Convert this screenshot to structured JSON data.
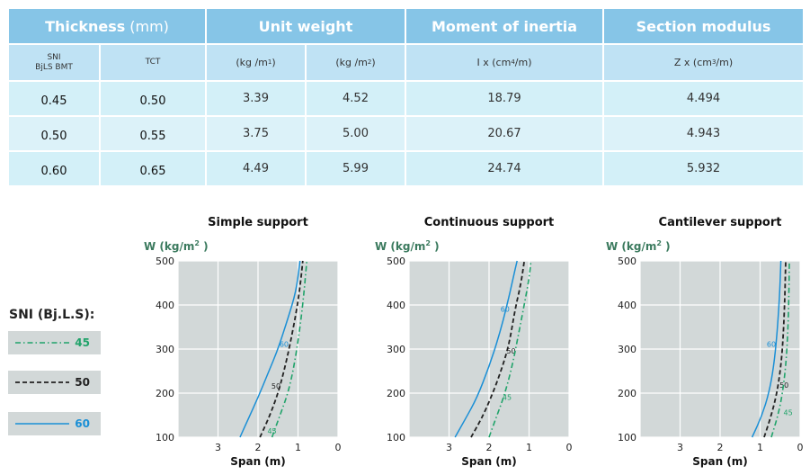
{
  "table": {
    "headers": {
      "thickness": "Thickness",
      "thickness_unit": "(mm)",
      "unit_weight": "Unit weight",
      "moment": "Moment of inertia",
      "modulus": "Section modulus"
    },
    "subheaders": {
      "sni_line1": "SNI",
      "sni_line2": "BjLS BMT",
      "tct": "TCT",
      "kgm1_base": "(kg /m",
      "kgm1_exp": "1",
      "kgm1_close": ")",
      "kgm2_base": "(kg /m",
      "kgm2_exp": "2",
      "kgm2_close": ")",
      "ix_base": "I x (cm",
      "ix_exp": "4",
      "ix_close": "/m)",
      "zx_base": "Z x (cm",
      "zx_exp": "3",
      "zx_close": "/m)"
    },
    "rows": [
      {
        "bmt": "0.45",
        "tct": "0.50",
        "w1": "3.39",
        "w2": "4.52",
        "ix": "18.79",
        "zx": "4.494"
      },
      {
        "bmt": "0.50",
        "tct": "0.55",
        "w1": "3.75",
        "w2": "5.00",
        "ix": "20.67",
        "zx": "4.943"
      },
      {
        "bmt": "0.60",
        "tct": "0.65",
        "w1": "4.49",
        "w2": "5.99",
        "ix": "24.74",
        "zx": "5.932"
      }
    ]
  },
  "legend": {
    "title": "SNI (Bj.L.S):",
    "items": [
      {
        "label": "45",
        "color": "#20a36a"
      },
      {
        "label": "50",
        "color": "#222222"
      },
      {
        "label": "60",
        "color": "#1a8fd6"
      }
    ]
  },
  "chart_data": [
    {
      "type": "line",
      "title": "Simple support",
      "ylabel_base": "W (kg/m",
      "ylabel_exp": "2",
      "ylabel_close": " )",
      "xlabel": "Span (m)",
      "xlim": [
        0,
        4
      ],
      "x_reversed": true,
      "ylim": [
        100,
        500
      ],
      "xticks": [
        "3",
        "2",
        "1",
        "0"
      ],
      "yticks": [
        "500",
        "400",
        "300",
        "200",
        "100"
      ],
      "series": [
        {
          "name": "60",
          "points": [
            [
              2.45,
              100
            ],
            [
              2.25,
              140
            ],
            [
              2.0,
              190
            ],
            [
              1.75,
              245
            ],
            [
              1.5,
              300
            ],
            [
              1.25,
              370
            ],
            [
              1.05,
              430
            ],
            [
              0.95,
              500
            ]
          ],
          "label_pos": [
            1.35,
            305
          ]
        },
        {
          "name": "50",
          "points": [
            [
              1.95,
              100
            ],
            [
              1.7,
              150
            ],
            [
              1.5,
              200
            ],
            [
              1.35,
              250
            ],
            [
              1.2,
              310
            ],
            [
              1.05,
              380
            ],
            [
              0.95,
              440
            ],
            [
              0.88,
              500
            ]
          ],
          "label_pos": [
            1.55,
            210
          ]
        },
        {
          "name": "45",
          "points": [
            [
              1.65,
              100
            ],
            [
              1.45,
              150
            ],
            [
              1.25,
              200
            ],
            [
              1.1,
              260
            ],
            [
              0.98,
              330
            ],
            [
              0.88,
              400
            ],
            [
              0.78,
              500
            ]
          ],
          "label_pos": [
            1.65,
            108
          ]
        }
      ]
    },
    {
      "type": "line",
      "title": "Continuous support",
      "ylabel_base": "W (kg/m",
      "ylabel_exp": "2",
      "ylabel_close": " )",
      "xlabel": "Span (m)",
      "xlim": [
        0,
        4
      ],
      "x_reversed": true,
      "ylim": [
        100,
        500
      ],
      "xticks": [
        "3",
        "2",
        "1",
        "0"
      ],
      "yticks": [
        "500",
        "400",
        "300",
        "200",
        "100"
      ],
      "series": [
        {
          "name": "60",
          "points": [
            [
              2.85,
              100
            ],
            [
              2.6,
              140
            ],
            [
              2.3,
              190
            ],
            [
              2.0,
              260
            ],
            [
              1.75,
              330
            ],
            [
              1.55,
              400
            ],
            [
              1.4,
              460
            ],
            [
              1.3,
              500
            ]
          ],
          "label_pos": [
            1.6,
            385
          ]
        },
        {
          "name": "50",
          "points": [
            [
              2.45,
              100
            ],
            [
              2.2,
              140
            ],
            [
              1.95,
              190
            ],
            [
              1.7,
              250
            ],
            [
              1.5,
              310
            ],
            [
              1.35,
              390
            ],
            [
              1.2,
              450
            ],
            [
              1.12,
              500
            ]
          ],
          "label_pos": [
            1.45,
            290
          ]
        },
        {
          "name": "45",
          "points": [
            [
              2.0,
              100
            ],
            [
              1.8,
              150
            ],
            [
              1.6,
              200
            ],
            [
              1.4,
              270
            ],
            [
              1.25,
              340
            ],
            [
              1.1,
              410
            ],
            [
              1.0,
              460
            ],
            [
              0.95,
              500
            ]
          ],
          "label_pos": [
            1.55,
            185
          ]
        }
      ]
    },
    {
      "type": "line",
      "title": "Cantilever support",
      "ylabel_base": "W (kg/m",
      "ylabel_exp": "2",
      "ylabel_close": " )",
      "xlabel": "Span (m)",
      "xlim": [
        0,
        4
      ],
      "x_reversed": true,
      "ylim": [
        100,
        500
      ],
      "xticks": [
        "3",
        "2",
        "1",
        "0"
      ],
      "yticks": [
        "500",
        "400",
        "300",
        "200",
        "100"
      ],
      "series": [
        {
          "name": "60",
          "points": [
            [
              1.2,
              100
            ],
            [
              0.95,
              150
            ],
            [
              0.78,
              200
            ],
            [
              0.66,
              260
            ],
            [
              0.58,
              330
            ],
            [
              0.52,
              410
            ],
            [
              0.48,
              500
            ]
          ],
          "label_pos": [
            0.72,
            305
          ]
        },
        {
          "name": "50",
          "points": [
            [
              0.9,
              100
            ],
            [
              0.72,
              150
            ],
            [
              0.58,
              200
            ],
            [
              0.48,
              260
            ],
            [
              0.42,
              330
            ],
            [
              0.38,
              420
            ],
            [
              0.36,
              500
            ]
          ],
          "label_pos": [
            0.4,
            212
          ]
        },
        {
          "name": "45",
          "points": [
            [
              0.72,
              100
            ],
            [
              0.55,
              150
            ],
            [
              0.44,
              200
            ],
            [
              0.36,
              260
            ],
            [
              0.31,
              330
            ],
            [
              0.28,
              420
            ],
            [
              0.27,
              500
            ]
          ],
          "label_pos": [
            0.3,
            150
          ]
        }
      ]
    }
  ]
}
